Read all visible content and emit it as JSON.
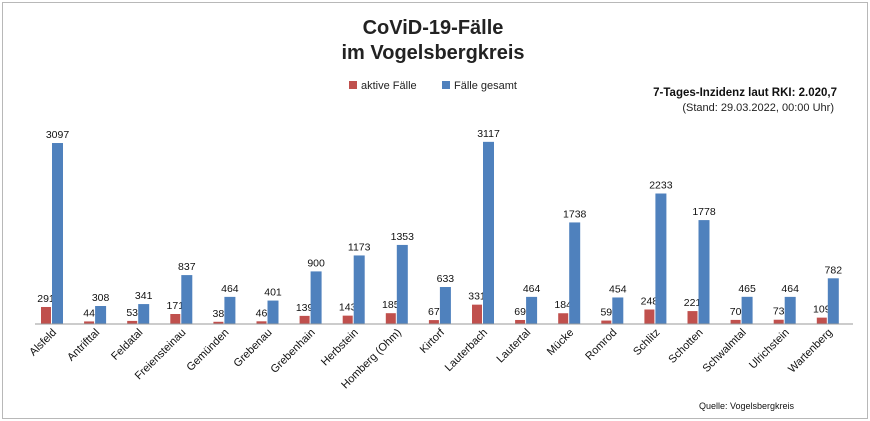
{
  "chart_data": {
    "type": "bar",
    "title_line1": "CoViD-19-Fälle",
    "title_line2": "im Vogelsbergkreis",
    "info_line1": "7-Tages-Inzidenz laut RKI: 2.020,7",
    "info_line2": "(Stand: 29.03.2022, 00:00 Uhr)",
    "source": "Quelle: Vogelsbergkreis",
    "legend_position": "top-center",
    "grid": false,
    "ylim": [
      0,
      3300
    ],
    "categories": [
      "Alsfeld",
      "Antrifttal",
      "Feldatal",
      "Freiensteinau",
      "Gemünden",
      "Grebenau",
      "Grebenhain",
      "Herbstein",
      "Homberg (Ohm)",
      "Kirtorf",
      "Lauterbach",
      "Lautertal",
      "Mücke",
      "Romrod",
      "Schlitz",
      "Schotten",
      "Schwalmtal",
      "Ulrichstein",
      "Wartenberg"
    ],
    "series": [
      {
        "name": "aktive Fälle",
        "color": "#c0504d",
        "values": [
          291,
          44,
          53,
          171,
          38,
          46,
          139,
          143,
          185,
          67,
          331,
          69,
          184,
          59,
          248,
          221,
          70,
          73,
          109
        ]
      },
      {
        "name": "Fälle gesamt",
        "color": "#4f81bd",
        "values": [
          3097,
          308,
          341,
          837,
          464,
          401,
          900,
          1173,
          1353,
          633,
          3117,
          464,
          1738,
          454,
          2233,
          1778,
          465,
          464,
          782
        ]
      }
    ]
  }
}
